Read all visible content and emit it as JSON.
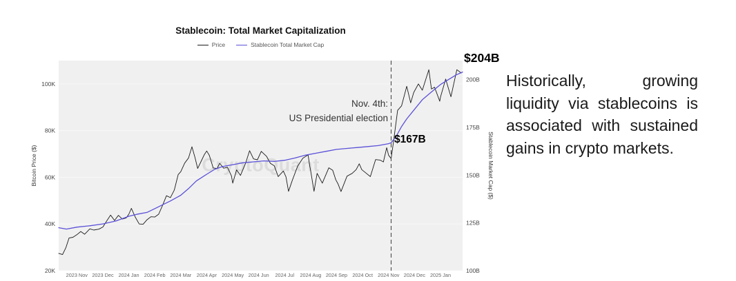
{
  "chart": {
    "title": "Stablecoin: Total Market Capitalization",
    "watermark": "CryptoQuant",
    "legend": [
      {
        "label": "Price",
        "color": "#1a1a1a"
      },
      {
        "label": "Stablecoin Total Market Cap",
        "color": "#5a50d8"
      }
    ],
    "annotations": {
      "event_line1": "Nov. 4th:",
      "event_line2": "US Presidential election",
      "event_value": "$167B",
      "latest_value": "$204B"
    }
  },
  "chart_data": {
    "type": "line",
    "title": "Stablecoin: Total Market Capitalization",
    "background": "#f0f0f0",
    "grid_color": "#ffffff",
    "x_axis": {
      "unit": "months since 2023-11-01",
      "domain": [
        -0.7,
        14.85
      ],
      "tick_positions": [
        0,
        1,
        2,
        3,
        4,
        5,
        6,
        7,
        8,
        9,
        10,
        11,
        12,
        13,
        14
      ],
      "tick_labels": [
        "2023 Nov",
        "2023 Dec",
        "2024 Jan",
        "2024 Feb",
        "2024 Mar",
        "2024 Apr",
        "2024 May",
        "2024 Jun",
        "2024 Jul",
        "2024 Aug",
        "2024 Sep",
        "2024 Oct",
        "2024 Nov",
        "2024 Dec",
        "2025 Jan"
      ]
    },
    "left_axis": {
      "label": "Bitcoin Price ($)",
      "unit": "USD thousands",
      "domain": [
        20,
        110
      ],
      "ticks": [
        20,
        40,
        60,
        80,
        100
      ],
      "tick_labels": [
        "20K",
        "40K",
        "60K",
        "80K",
        "100K"
      ]
    },
    "right_axis": {
      "label": "Stablecoin Market Cap ($)",
      "unit": "USD billions",
      "domain": [
        100,
        210
      ],
      "ticks": [
        100,
        125,
        150,
        175,
        200
      ],
      "tick_labels": [
        "100B",
        "125B",
        "150B",
        "175B",
        "200B"
      ]
    },
    "event_line_x": 12.1,
    "event_description": "Nov. 4th: US Presidential election",
    "stablecoin_cap_at_event_billions": 167,
    "stablecoin_cap_latest_billions": 204,
    "series": [
      {
        "name": "Price",
        "axis": "left",
        "color": "#1a1a1a",
        "stroke_width": 0.9,
        "points": [
          [
            -0.7,
            27.4
          ],
          [
            -0.55,
            26.9
          ],
          [
            -0.42,
            29.9
          ],
          [
            -0.3,
            34.0
          ],
          [
            -0.15,
            34.3
          ],
          [
            0.0,
            35.4
          ],
          [
            0.15,
            36.8
          ],
          [
            0.3,
            35.6
          ],
          [
            0.5,
            37.9
          ],
          [
            0.65,
            37.4
          ],
          [
            0.85,
            37.8
          ],
          [
            1.0,
            38.7
          ],
          [
            1.15,
            41.3
          ],
          [
            1.3,
            43.8
          ],
          [
            1.45,
            41.5
          ],
          [
            1.6,
            43.7
          ],
          [
            1.75,
            42.1
          ],
          [
            1.9,
            42.6
          ],
          [
            2.0,
            44.2
          ],
          [
            2.1,
            46.7
          ],
          [
            2.25,
            42.9
          ],
          [
            2.4,
            40.0
          ],
          [
            2.55,
            39.9
          ],
          [
            2.7,
            41.8
          ],
          [
            2.85,
            43.1
          ],
          [
            3.0,
            43.0
          ],
          [
            3.15,
            44.2
          ],
          [
            3.3,
            48.0
          ],
          [
            3.45,
            52.1
          ],
          [
            3.6,
            51.3
          ],
          [
            3.75,
            54.5
          ],
          [
            3.9,
            61.2
          ],
          [
            4.0,
            62.4
          ],
          [
            4.15,
            66.1
          ],
          [
            4.3,
            68.3
          ],
          [
            4.43,
            73.1
          ],
          [
            4.55,
            68.4
          ],
          [
            4.65,
            63.8
          ],
          [
            4.8,
            67.2
          ],
          [
            4.9,
            69.6
          ],
          [
            5.0,
            71.3
          ],
          [
            5.1,
            69.4
          ],
          [
            5.25,
            64.0
          ],
          [
            5.4,
            63.8
          ],
          [
            5.5,
            66.0
          ],
          [
            5.65,
            63.9
          ],
          [
            5.8,
            64.3
          ],
          [
            5.95,
            60.6
          ],
          [
            6.0,
            57.5
          ],
          [
            6.15,
            63.2
          ],
          [
            6.3,
            60.8
          ],
          [
            6.5,
            66.2
          ],
          [
            6.65,
            71.4
          ],
          [
            6.8,
            67.9
          ],
          [
            6.95,
            67.5
          ],
          [
            7.1,
            71.1
          ],
          [
            7.3,
            69.0
          ],
          [
            7.45,
            66.0
          ],
          [
            7.6,
            64.9
          ],
          [
            7.75,
            60.3
          ],
          [
            7.95,
            62.7
          ],
          [
            8.05,
            60.2
          ],
          [
            8.15,
            54.0
          ],
          [
            8.3,
            58.9
          ],
          [
            8.5,
            64.8
          ],
          [
            8.7,
            68.2
          ],
          [
            8.9,
            69.6
          ],
          [
            8.97,
            64.6
          ],
          [
            9.0,
            62.9
          ],
          [
            9.13,
            54.0
          ],
          [
            9.25,
            61.7
          ],
          [
            9.45,
            57.5
          ],
          [
            9.7,
            64.1
          ],
          [
            9.85,
            63.0
          ],
          [
            9.97,
            58.9
          ],
          [
            10.05,
            57.3
          ],
          [
            10.17,
            53.9
          ],
          [
            10.4,
            60.5
          ],
          [
            10.6,
            61.7
          ],
          [
            10.75,
            63.3
          ],
          [
            10.87,
            65.8
          ],
          [
            10.97,
            63.3
          ],
          [
            11.1,
            62.1
          ],
          [
            11.3,
            60.3
          ],
          [
            11.5,
            67.6
          ],
          [
            11.67,
            67.4
          ],
          [
            11.8,
            66.6
          ],
          [
            11.93,
            72.7
          ],
          [
            12.0,
            69.5
          ],
          [
            12.1,
            68.0
          ],
          [
            12.2,
            76.0
          ],
          [
            12.35,
            88.7
          ],
          [
            12.5,
            90.6
          ],
          [
            12.7,
            99.0
          ],
          [
            12.85,
            91.9
          ],
          [
            12.97,
            96.4
          ],
          [
            13.15,
            100.0
          ],
          [
            13.3,
            97.3
          ],
          [
            13.55,
            106.1
          ],
          [
            13.65,
            97.8
          ],
          [
            13.77,
            98.6
          ],
          [
            13.97,
            92.6
          ],
          [
            14.0,
            94.4
          ],
          [
            14.2,
            102.1
          ],
          [
            14.4,
            94.5
          ],
          [
            14.63,
            106.1
          ],
          [
            14.8,
            104.7
          ]
        ]
      },
      {
        "name": "Stablecoin Total Market Cap",
        "axis": "right",
        "color": "#5a50d8",
        "stroke_width": 1.3,
        "points": [
          [
            -0.7,
            122.5
          ],
          [
            -0.4,
            121.8
          ],
          [
            0.0,
            122.8
          ],
          [
            0.5,
            123.5
          ],
          [
            1.0,
            124.5
          ],
          [
            1.5,
            126.0
          ],
          [
            2.0,
            128.5
          ],
          [
            2.3,
            129.5
          ],
          [
            2.7,
            130.5
          ],
          [
            3.0,
            132.5
          ],
          [
            3.3,
            134.5
          ],
          [
            3.6,
            136.5
          ],
          [
            4.0,
            139.5
          ],
          [
            4.3,
            143.0
          ],
          [
            4.6,
            147.0
          ],
          [
            5.0,
            150.5
          ],
          [
            5.3,
            153.0
          ],
          [
            5.6,
            154.5
          ],
          [
            6.0,
            155.5
          ],
          [
            6.4,
            156.5
          ],
          [
            6.8,
            157.0
          ],
          [
            7.2,
            157.5
          ],
          [
            7.6,
            157.2
          ],
          [
            8.0,
            157.8
          ],
          [
            8.4,
            159.0
          ],
          [
            8.8,
            160.5
          ],
          [
            9.2,
            161.5
          ],
          [
            9.6,
            162.5
          ],
          [
            10.0,
            163.5
          ],
          [
            10.4,
            164.0
          ],
          [
            10.8,
            164.5
          ],
          [
            11.2,
            165.0
          ],
          [
            11.6,
            165.5
          ],
          [
            12.0,
            166.5
          ],
          [
            12.1,
            167.0
          ],
          [
            12.3,
            170.5
          ],
          [
            12.5,
            175.5
          ],
          [
            12.7,
            179.5
          ],
          [
            13.0,
            184.5
          ],
          [
            13.3,
            189.5
          ],
          [
            13.6,
            193.0
          ],
          [
            14.0,
            197.5
          ],
          [
            14.3,
            200.0
          ],
          [
            14.6,
            202.5
          ],
          [
            14.85,
            204.0
          ]
        ]
      }
    ]
  },
  "aside": {
    "text": "Historically, growing liquidity via stablecoins is associated with sustained gains in crypto markets."
  }
}
